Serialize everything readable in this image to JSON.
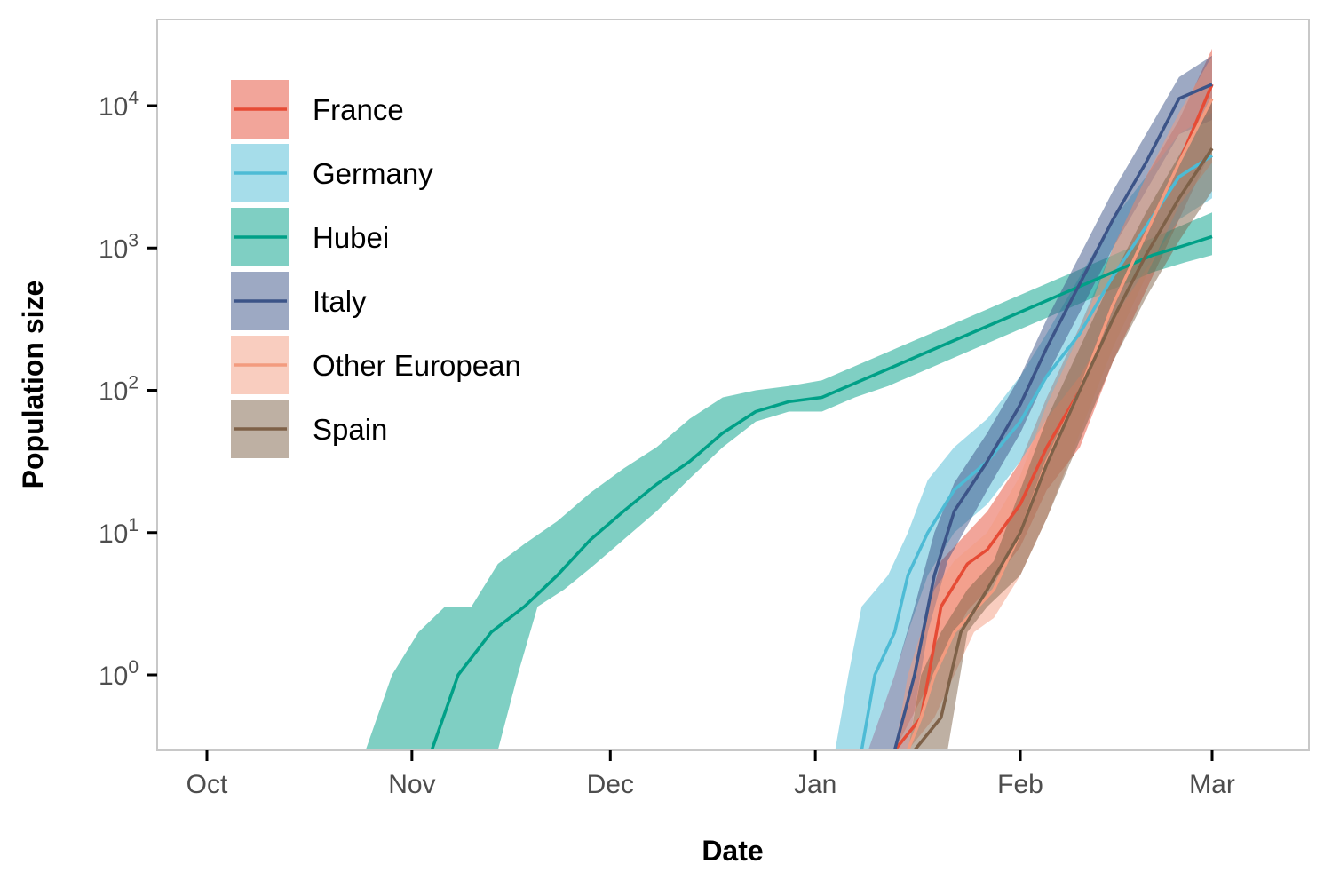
{
  "chart_data": {
    "type": "line",
    "title": "",
    "xlabel": "Date",
    "ylabel": "Population size",
    "y_scale": "log10",
    "x_unit": "days since Oct 1",
    "xlim": [
      -1.5,
      159
    ],
    "ylim_log10": [
      -0.53,
      1.1
    ],
    "y_axis_max_log10": 4.62,
    "x_ticks": [
      {
        "label": "Oct",
        "value": 0
      },
      {
        "label": "Nov",
        "value": 31
      },
      {
        "label": "Dec",
        "value": 61
      },
      {
        "label": "Jan",
        "value": 92
      },
      {
        "label": "Feb",
        "value": 123
      },
      {
        "label": "Mar",
        "value": 152
      }
    ],
    "y_ticks": [
      {
        "base": "10",
        "exp": "0",
        "value": 1
      },
      {
        "base": "10",
        "exp": "1",
        "value": 10
      },
      {
        "base": "10",
        "exp": "2",
        "value": 100
      },
      {
        "base": "10",
        "exp": "3",
        "value": 1000
      },
      {
        "base": "10",
        "exp": "4",
        "value": 10000
      }
    ],
    "legend_position": "top-left",
    "series": [
      {
        "name": "France",
        "color": "#E64B35",
        "band_color": "#E64B35",
        "line": [
          [
            4,
            -0.53
          ],
          [
            104,
            -0.53
          ],
          [
            108,
            -0.3
          ],
          [
            111,
            0.48
          ],
          [
            115,
            0.78
          ],
          [
            118,
            0.88
          ],
          [
            123,
            1.2
          ],
          [
            127,
            1.6
          ],
          [
            132,
            2.0
          ],
          [
            137,
            2.6
          ],
          [
            142,
            3.1
          ],
          [
            147,
            3.6
          ],
          [
            152,
            4.15
          ]
        ],
        "upper": [
          [
            104,
            -0.53
          ],
          [
            106,
            -0.2
          ],
          [
            108,
            0.3
          ],
          [
            111,
            0.8
          ],
          [
            115,
            1.0
          ],
          [
            118,
            1.15
          ],
          [
            123,
            1.5
          ],
          [
            127,
            1.95
          ],
          [
            132,
            2.45
          ],
          [
            137,
            3.0
          ],
          [
            142,
            3.5
          ],
          [
            147,
            3.9
          ],
          [
            152,
            4.4
          ]
        ],
        "lower": [
          [
            104,
            -0.53
          ],
          [
            111,
            0.1
          ],
          [
            115,
            0.45
          ],
          [
            118,
            0.6
          ],
          [
            123,
            0.9
          ],
          [
            127,
            1.3
          ],
          [
            132,
            1.6
          ],
          [
            137,
            2.2
          ],
          [
            142,
            2.7
          ],
          [
            147,
            3.2
          ],
          [
            152,
            3.7
          ]
        ]
      },
      {
        "name": "Germany",
        "color": "#4DBBD5",
        "band_color": "#4DBBD5",
        "line": [
          [
            4,
            -0.53
          ],
          [
            99,
            -0.53
          ],
          [
            101,
            0.0
          ],
          [
            104,
            0.3
          ],
          [
            106,
            0.7
          ],
          [
            109,
            1.0
          ],
          [
            113,
            1.3
          ],
          [
            118,
            1.5
          ],
          [
            123,
            1.78
          ],
          [
            127,
            2.1
          ],
          [
            132,
            2.4
          ],
          [
            137,
            2.8
          ],
          [
            142,
            3.15
          ],
          [
            147,
            3.5
          ],
          [
            152,
            3.65
          ]
        ],
        "upper": [
          [
            95,
            -0.53
          ],
          [
            97,
            0.0
          ],
          [
            99,
            0.48
          ],
          [
            103,
            0.7
          ],
          [
            106,
            1.0
          ],
          [
            109,
            1.37
          ],
          [
            113,
            1.6
          ],
          [
            118,
            1.8
          ],
          [
            123,
            2.1
          ],
          [
            127,
            2.4
          ],
          [
            132,
            2.8
          ],
          [
            137,
            3.2
          ],
          [
            142,
            3.5
          ],
          [
            147,
            3.8
          ],
          [
            152,
            3.95
          ]
        ],
        "lower": [
          [
            100,
            -0.53
          ],
          [
            104,
            0.0
          ],
          [
            106,
            0.3
          ],
          [
            109,
            0.7
          ],
          [
            113,
            1.0
          ],
          [
            118,
            1.2
          ],
          [
            123,
            1.5
          ],
          [
            127,
            1.8
          ],
          [
            132,
            2.1
          ],
          [
            137,
            2.5
          ],
          [
            142,
            2.85
          ],
          [
            147,
            3.2
          ],
          [
            152,
            3.35
          ]
        ]
      },
      {
        "name": "Hubei",
        "color": "#00A087",
        "band_color": "#00A087",
        "line": [
          [
            4,
            -0.53
          ],
          [
            34,
            -0.53
          ],
          [
            38,
            0.0
          ],
          [
            43,
            0.3
          ],
          [
            48,
            0.48
          ],
          [
            53,
            0.7
          ],
          [
            58,
            0.95
          ],
          [
            63,
            1.15
          ],
          [
            68,
            1.34
          ],
          [
            73,
            1.5
          ],
          [
            78,
            1.7
          ],
          [
            83,
            1.85
          ],
          [
            88,
            1.92
          ],
          [
            93,
            1.95
          ],
          [
            98,
            2.05
          ],
          [
            103,
            2.15
          ],
          [
            108,
            2.25
          ],
          [
            113,
            2.35
          ],
          [
            118,
            2.45
          ],
          [
            123,
            2.55
          ],
          [
            128,
            2.65
          ],
          [
            133,
            2.75
          ],
          [
            138,
            2.85
          ],
          [
            143,
            2.95
          ],
          [
            148,
            3.02
          ],
          [
            152,
            3.08
          ]
        ],
        "upper": [
          [
            24,
            -0.53
          ],
          [
            28,
            0.0
          ],
          [
            32,
            0.3
          ],
          [
            36,
            0.48
          ],
          [
            40,
            0.48
          ],
          [
            44,
            0.78
          ],
          [
            48,
            0.92
          ],
          [
            53,
            1.08
          ],
          [
            58,
            1.28
          ],
          [
            63,
            1.45
          ],
          [
            68,
            1.6
          ],
          [
            73,
            1.8
          ],
          [
            78,
            1.95
          ],
          [
            83,
            2.0
          ],
          [
            88,
            2.03
          ],
          [
            93,
            2.07
          ],
          [
            98,
            2.17
          ],
          [
            103,
            2.27
          ],
          [
            108,
            2.37
          ],
          [
            113,
            2.47
          ],
          [
            118,
            2.57
          ],
          [
            123,
            2.67
          ],
          [
            128,
            2.77
          ],
          [
            133,
            2.87
          ],
          [
            138,
            2.97
          ],
          [
            143,
            3.07
          ],
          [
            148,
            3.17
          ],
          [
            152,
            3.25
          ]
        ],
        "lower": [
          [
            44,
            -0.53
          ],
          [
            47,
            0.0
          ],
          [
            50,
            0.48
          ],
          [
            54,
            0.6
          ],
          [
            58,
            0.75
          ],
          [
            63,
            0.95
          ],
          [
            68,
            1.15
          ],
          [
            73,
            1.38
          ],
          [
            78,
            1.6
          ],
          [
            83,
            1.78
          ],
          [
            88,
            1.85
          ],
          [
            93,
            1.85
          ],
          [
            98,
            1.95
          ],
          [
            103,
            2.03
          ],
          [
            108,
            2.13
          ],
          [
            113,
            2.23
          ],
          [
            118,
            2.33
          ],
          [
            123,
            2.43
          ],
          [
            128,
            2.53
          ],
          [
            133,
            2.63
          ],
          [
            138,
            2.73
          ],
          [
            143,
            2.83
          ],
          [
            148,
            2.9
          ],
          [
            152,
            2.95
          ]
        ]
      },
      {
        "name": "Italy",
        "color": "#3C5488",
        "band_color": "#3C5488",
        "line": [
          [
            4,
            -0.53
          ],
          [
            104,
            -0.53
          ],
          [
            107,
            0.0
          ],
          [
            110,
            0.7
          ],
          [
            113,
            1.15
          ],
          [
            118,
            1.5
          ],
          [
            123,
            1.9
          ],
          [
            127,
            2.3
          ],
          [
            132,
            2.75
          ],
          [
            137,
            3.2
          ],
          [
            142,
            3.6
          ],
          [
            147,
            4.05
          ],
          [
            152,
            4.15
          ]
        ],
        "upper": [
          [
            100,
            -0.53
          ],
          [
            104,
            0.0
          ],
          [
            107,
            0.48
          ],
          [
            110,
            1.0
          ],
          [
            113,
            1.35
          ],
          [
            118,
            1.7
          ],
          [
            123,
            2.1
          ],
          [
            127,
            2.5
          ],
          [
            132,
            2.95
          ],
          [
            137,
            3.4
          ],
          [
            142,
            3.8
          ],
          [
            147,
            4.2
          ],
          [
            152,
            4.35
          ]
        ],
        "lower": [
          [
            106,
            -0.53
          ],
          [
            109,
            0.3
          ],
          [
            112,
            0.8
          ],
          [
            118,
            1.3
          ],
          [
            123,
            1.7
          ],
          [
            127,
            2.1
          ],
          [
            132,
            2.55
          ],
          [
            137,
            3.0
          ],
          [
            142,
            3.4
          ],
          [
            147,
            3.8
          ],
          [
            152,
            3.9
          ]
        ]
      },
      {
        "name": "Other European",
        "color": "#F39B7F",
        "band_color": "#F39B7F",
        "line": [
          [
            4,
            -0.53
          ],
          [
            106,
            -0.53
          ],
          [
            108,
            -0.3
          ],
          [
            110,
            0.0
          ],
          [
            113,
            0.3
          ],
          [
            116,
            0.45
          ],
          [
            119,
            0.6
          ],
          [
            123,
            1.0
          ],
          [
            127,
            1.5
          ],
          [
            132,
            2.0
          ],
          [
            137,
            2.6
          ],
          [
            142,
            3.1
          ],
          [
            147,
            3.6
          ],
          [
            152,
            4.05
          ]
        ],
        "upper": [
          [
            104,
            -0.53
          ],
          [
            106,
            0.0
          ],
          [
            108,
            0.3
          ],
          [
            110,
            0.6
          ],
          [
            113,
            0.8
          ],
          [
            118,
            1.0
          ],
          [
            123,
            1.4
          ],
          [
            127,
            1.9
          ],
          [
            132,
            2.4
          ],
          [
            137,
            3.0
          ],
          [
            142,
            3.5
          ],
          [
            147,
            3.95
          ],
          [
            152,
            4.35
          ]
        ],
        "lower": [
          [
            106,
            -0.53
          ],
          [
            110,
            -0.3
          ],
          [
            113,
            0.0
          ],
          [
            116,
            0.3
          ],
          [
            119,
            0.4
          ],
          [
            123,
            0.7
          ],
          [
            127,
            1.1
          ],
          [
            132,
            1.7
          ],
          [
            137,
            2.3
          ],
          [
            142,
            2.8
          ],
          [
            147,
            3.3
          ],
          [
            152,
            3.6
          ]
        ]
      },
      {
        "name": "Spain",
        "color": "#7E6148",
        "band_color": "#7E6148",
        "line": [
          [
            4,
            -0.53
          ],
          [
            107,
            -0.53
          ],
          [
            111,
            -0.3
          ],
          [
            114,
            0.3
          ],
          [
            118,
            0.6
          ],
          [
            123,
            1.0
          ],
          [
            127,
            1.48
          ],
          [
            132,
            2.0
          ],
          [
            137,
            2.5
          ],
          [
            142,
            2.95
          ],
          [
            147,
            3.35
          ],
          [
            152,
            3.7
          ]
        ],
        "upper": [
          [
            106,
            -0.53
          ],
          [
            108,
            0.0
          ],
          [
            111,
            0.3
          ],
          [
            115,
            0.6
          ],
          [
            119,
            0.8
          ],
          [
            123,
            1.3
          ],
          [
            127,
            1.8
          ],
          [
            132,
            2.3
          ],
          [
            137,
            2.8
          ],
          [
            142,
            3.25
          ],
          [
            147,
            3.65
          ],
          [
            152,
            4.05
          ]
        ],
        "lower": [
          [
            112,
            -0.53
          ],
          [
            115,
            0.3
          ],
          [
            118,
            0.48
          ],
          [
            123,
            0.7
          ],
          [
            127,
            1.1
          ],
          [
            132,
            1.65
          ],
          [
            137,
            2.2
          ],
          [
            142,
            2.65
          ],
          [
            147,
            3.05
          ],
          [
            152,
            3.4
          ]
        ]
      }
    ]
  }
}
